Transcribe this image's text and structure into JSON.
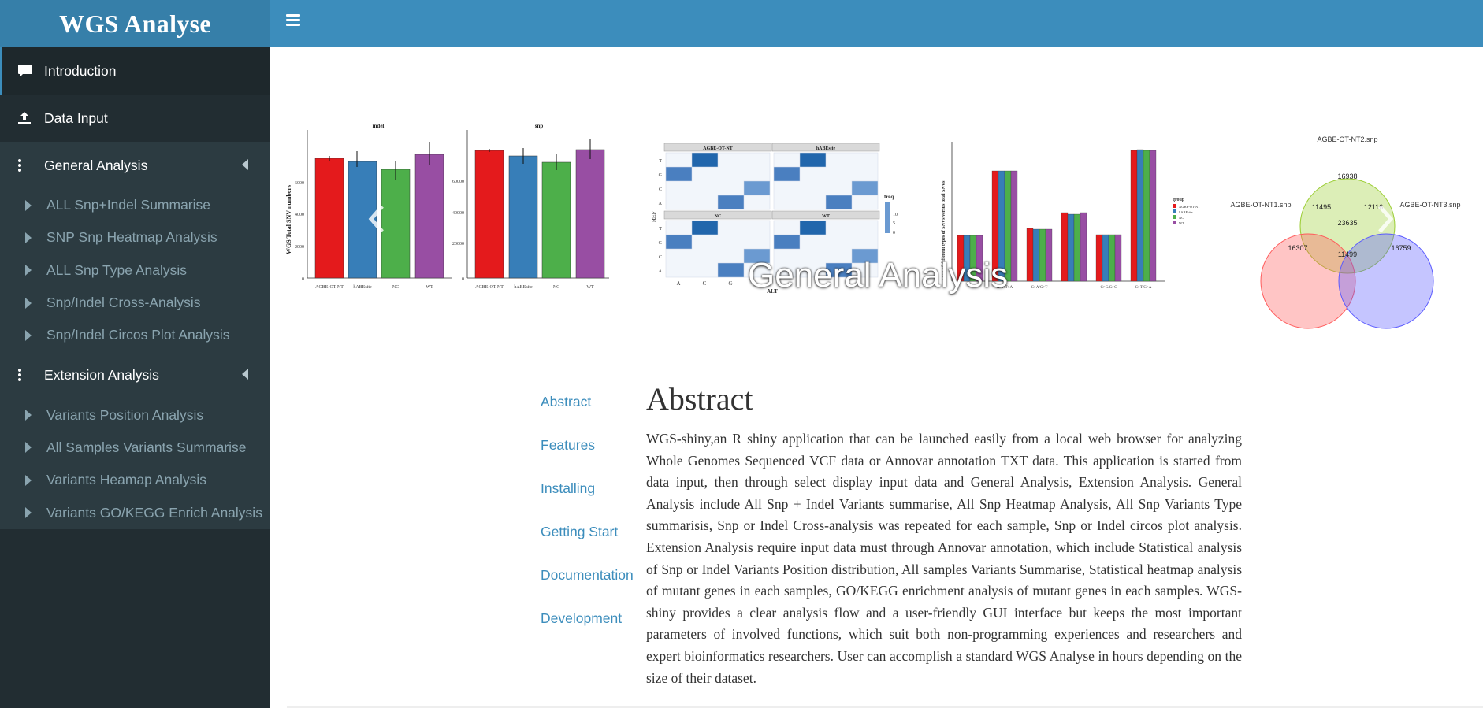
{
  "header": {
    "app_title": "WGS Analyse",
    "menu_icon": "hamburger-icon"
  },
  "sidebar": {
    "items": [
      {
        "label": "Introduction",
        "icon": "comment-icon",
        "active": true
      },
      {
        "label": "Data Input",
        "icon": "upload-icon"
      },
      {
        "label": "General Analysis",
        "icon": "vertical-dots-icon",
        "expanded": true,
        "children": [
          "ALL Snp+Indel Summarise",
          "SNP Snp Heatmap Analysis",
          "ALL Snp Type Analysis",
          "Snp/Indel Cross-Analysis",
          "Snp/Indel Circos Plot Analysis"
        ]
      },
      {
        "label": "Extension Analysis",
        "icon": "vertical-dots-icon",
        "expanded": true,
        "children": [
          "Variants Position Analysis",
          "All Samples Variants Summarise",
          "Variants Heamap Analysis",
          "Variants GO/KEGG Enrich Analysis"
        ]
      }
    ]
  },
  "carousel": {
    "caption": "General Analysis",
    "bar_panel": {
      "titles": [
        "indel",
        "snp"
      ],
      "ylabel": "WGS Total SNV numbers",
      "left_ticks": [
        "0",
        "2000",
        "4000",
        "6000"
      ],
      "right_ticks": [
        "0",
        "20000",
        "40000",
        "60000"
      ],
      "x_labels": [
        "AGBE-OT-NT",
        "hABEsite",
        "NC",
        "WT"
      ],
      "colors": [
        "#e41a1c",
        "#377eb8",
        "#4daf4a",
        "#984ea3"
      ]
    },
    "heatmap": {
      "panel_titles": [
        "AGBE-OT-NT",
        "hABEsite",
        "NC",
        "WT"
      ],
      "rows": [
        "T",
        "G",
        "C",
        "A"
      ],
      "cols": [
        "A",
        "C",
        "G"
      ],
      "ylabel": "REF",
      "xlabel": "ALT",
      "legend_title": "freq",
      "legend_ticks": [
        "10",
        "5",
        "0"
      ]
    },
    "type_chart": {
      "ylabel": "Freq of different types of SNVs versus total SNVs",
      "legend_title": "group",
      "legend": [
        "AGBE-OT-NT",
        "hABEsite",
        "NC",
        "WT"
      ],
      "x_labels": [
        "A>T/T>A",
        "C>A/G>T",
        "C>G/G>C",
        "C>T/G>A"
      ]
    },
    "venn": {
      "sets": [
        "AGBE-OT-NT2.snp",
        "AGBE-OT-NT1.snp",
        "AGBE-OT-NT3.snp"
      ],
      "values": [
        "16938",
        "11495",
        "12116",
        "23635",
        "16307",
        "11499",
        "16759"
      ]
    }
  },
  "toc": [
    "Abstract",
    "Features",
    "Installing",
    "Getting Start",
    "Documentation",
    "Development"
  ],
  "abstract": {
    "heading": "Abstract",
    "body": "WGS-shiny,an R shiny application that can be launched easily from a local web browser for analyzing Whole Genomes Sequenced VCF data or Annovar annotation TXT data. This application is started from data input, then through select display input data and General Analysis, Extension Analysis. General Analysis include All Snp + Indel Variants summarise, All Snp Heatmap Analysis, All Snp Variants Type summarisis, Snp or Indel Cross-analysis was repeated for each sample, Snp or Indel circos plot analysis. Extension Analysis require input data must through Annovar annotation, which include Statistical analysis of Snp or Indel Variants Position distribution, All samples Variants Summarise, Statistical heatmap analysis of mutant genes in each samples, GO/KEGG enrichment analysis of mutant genes in each samples. WGS-shiny provides a clear analysis flow and a user-friendly GUI interface but keeps the most important parameters of involved functions, which suit both non-programming experiences and researchers and expert bioinformatics researchers. User can accomplish a standard WGS Analyse in hours depending on the size of their dataset."
  }
}
